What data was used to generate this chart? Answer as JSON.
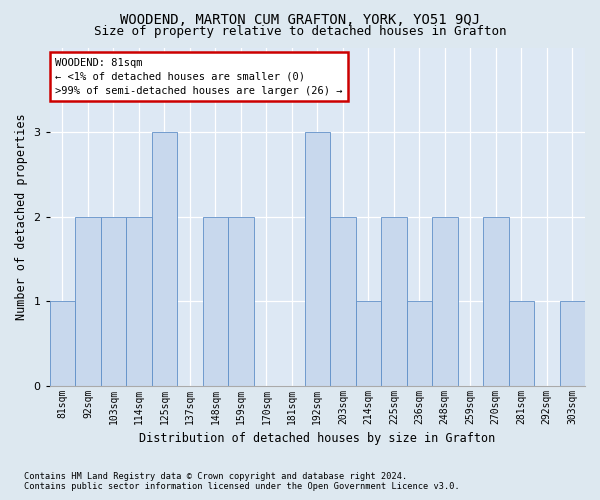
{
  "title1": "WOODEND, MARTON CUM GRAFTON, YORK, YO51 9QJ",
  "title2": "Size of property relative to detached houses in Grafton",
  "xlabel": "Distribution of detached houses by size in Grafton",
  "ylabel": "Number of detached properties",
  "categories": [
    "81sqm",
    "92sqm",
    "103sqm",
    "114sqm",
    "125sqm",
    "137sqm",
    "148sqm",
    "159sqm",
    "170sqm",
    "181sqm",
    "192sqm",
    "203sqm",
    "214sqm",
    "225sqm",
    "236sqm",
    "248sqm",
    "259sqm",
    "270sqm",
    "281sqm",
    "292sqm",
    "303sqm"
  ],
  "values": [
    1,
    2,
    2,
    2,
    3,
    0,
    2,
    2,
    0,
    0,
    3,
    2,
    1,
    2,
    1,
    2,
    0,
    2,
    1,
    0,
    1
  ],
  "bar_color": "#c8d8ed",
  "bar_edge_color": "#6090c8",
  "annotation_title": "WOODEND: 81sqm",
  "annotation_line1": "← <1% of detached houses are smaller (0)",
  "annotation_line2": ">99% of semi-detached houses are larger (26) →",
  "annotation_box_color": "#ffffff",
  "annotation_border_color": "#cc0000",
  "ylim": [
    0,
    4
  ],
  "yticks": [
    0,
    1,
    2,
    3
  ],
  "footnote1": "Contains HM Land Registry data © Crown copyright and database right 2024.",
  "footnote2": "Contains public sector information licensed under the Open Government Licence v3.0.",
  "background_color": "#dde8f0",
  "plot_background_color": "#dde8f4",
  "title1_fontsize": 10,
  "title2_fontsize": 9,
  "tick_fontsize": 7,
  "ylabel_fontsize": 8.5,
  "xlabel_fontsize": 8.5,
  "footnote_fontsize": 6.2
}
